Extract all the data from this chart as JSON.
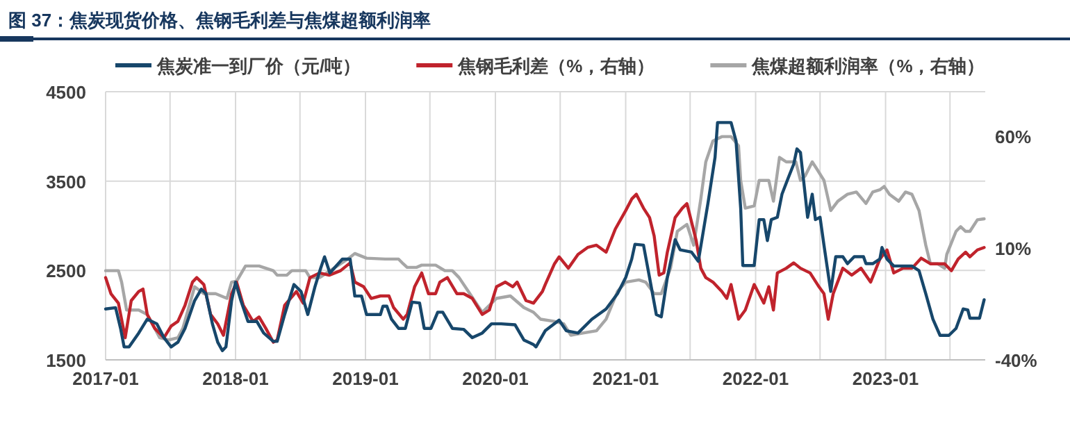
{
  "chart_data": {
    "type": "line",
    "title": "图 37：焦炭现货价格、焦钢毛利差与焦煤超额利润率",
    "grid": true,
    "legend": "top",
    "xlim": [
      "2017-01-01",
      "2023-10-08"
    ],
    "xticks": [
      {
        "value": "2017-01-01",
        "label": "2017-01"
      },
      {
        "value": "2017-07-01",
        "label": null
      },
      {
        "value": "2018-01-01",
        "label": "2018-01"
      },
      {
        "value": "2018-07-01",
        "label": null
      },
      {
        "value": "2019-01-01",
        "label": "2019-01"
      },
      {
        "value": "2019-07-01",
        "label": null
      },
      {
        "value": "2020-01-01",
        "label": "2020-01"
      },
      {
        "value": "2020-07-01",
        "label": null
      },
      {
        "value": "2021-01-01",
        "label": "2021-01"
      },
      {
        "value": "2021-07-01",
        "label": null
      },
      {
        "value": "2022-01-01",
        "label": "2022-01"
      },
      {
        "value": "2022-07-01",
        "label": null
      },
      {
        "value": "2023-01-01",
        "label": "2023-01"
      },
      {
        "value": "2023-07-01",
        "label": null
      }
    ],
    "ylim": [
      1500,
      4500
    ],
    "yticks": [
      1500,
      2500,
      3500,
      4500
    ],
    "y2lim": [
      -40,
      80
    ],
    "y2ticks": [
      {
        "value": -40,
        "label": "-40%"
      },
      {
        "value": 10,
        "label": "10%"
      },
      {
        "value": 60,
        "label": "60%"
      }
    ],
    "series": [
      {
        "name": "焦炭准一到厂价（元/吨）",
        "color": "#17476b",
        "x": [
          "2017-01-01",
          "2017-01-29",
          "2017-02-12",
          "2017-02-22",
          "2017-03-08",
          "2017-04-04",
          "2017-04-28",
          "2017-05-25",
          "2017-06-14",
          "2017-07-04",
          "2017-07-23",
          "2017-08-12",
          "2017-09-08",
          "2017-09-27",
          "2017-10-10",
          "2017-10-28",
          "2017-11-12",
          "2017-11-25",
          "2017-12-05",
          "2017-12-21",
          "2018-01-01",
          "2018-01-16",
          "2018-02-05",
          "2018-03-02",
          "2018-03-21",
          "2018-04-17",
          "2018-04-28",
          "2018-05-19",
          "2018-06-14",
          "2018-07-04",
          "2018-07-23",
          "2018-08-12",
          "2018-08-28",
          "2018-09-08",
          "2018-09-23",
          "2018-10-28",
          "2018-11-19",
          "2018-12-02",
          "2018-12-21",
          "2019-01-04",
          "2019-02-12",
          "2019-02-19",
          "2019-03-02",
          "2019-03-15",
          "2019-04-04",
          "2019-04-23",
          "2019-05-12",
          "2019-06-02",
          "2019-06-15",
          "2019-07-04",
          "2019-07-23",
          "2019-08-06",
          "2019-09-02",
          "2019-10-04",
          "2019-10-28",
          "2019-11-25",
          "2019-12-21",
          "2020-01-17",
          "2020-02-25",
          "2020-03-21",
          "2020-04-17",
          "2020-04-24",
          "2020-05-20",
          "2020-06-28",
          "2020-07-18",
          "2020-08-20",
          "2020-09-28",
          "2020-11-07",
          "2020-12-09",
          "2021-01-01",
          "2021-01-18",
          "2021-01-27",
          "2021-02-20",
          "2021-03-09",
          "2021-03-28",
          "2021-04-11",
          "2021-04-28",
          "2021-05-20",
          "2021-06-03",
          "2021-07-05",
          "2021-07-24",
          "2021-08-20",
          "2021-09-09",
          "2021-09-16",
          "2021-10-24",
          "2021-11-07",
          "2021-11-20",
          "2021-11-26",
          "2021-12-28",
          "2022-01-11",
          "2022-01-24",
          "2022-02-03",
          "2022-02-14",
          "2022-03-03",
          "2022-03-16",
          "2022-04-05",
          "2022-04-18",
          "2022-04-27",
          "2022-05-07",
          "2022-05-20",
          "2022-05-27",
          "2022-06-09",
          "2022-06-18",
          "2022-07-01",
          "2022-07-12",
          "2022-07-31",
          "2022-08-14",
          "2022-09-03",
          "2022-09-16",
          "2022-10-05",
          "2022-10-31",
          "2022-11-07",
          "2022-11-26",
          "2022-12-16",
          "2022-12-22",
          "2023-01-05",
          "2023-01-24",
          "2023-03-16",
          "2023-04-05",
          "2023-04-24",
          "2023-05-14",
          "2023-06-03",
          "2023-06-28",
          "2023-07-18",
          "2023-08-07",
          "2023-08-20",
          "2023-08-26",
          "2023-09-22",
          "2023-10-05"
        ],
        "values": [
          2069,
          2084,
          1852,
          1645,
          1645,
          1800,
          1955,
          1903,
          1748,
          1645,
          1697,
          1852,
          2162,
          2291,
          2240,
          1903,
          1697,
          1603,
          1645,
          2162,
          2369,
          2162,
          1929,
          1929,
          1800,
          1707,
          1707,
          2007,
          2343,
          2265,
          2007,
          2317,
          2524,
          2653,
          2472,
          2627,
          2627,
          2214,
          2214,
          2007,
          2007,
          2100,
          2100,
          1955,
          1852,
          1852,
          2146,
          2136,
          1852,
          1852,
          2033,
          2033,
          1852,
          1841,
          1748,
          1800,
          1903,
          1903,
          1893,
          1722,
          1671,
          1645,
          1826,
          1945,
          1826,
          1800,
          1955,
          2069,
          2240,
          2421,
          2628,
          2793,
          2783,
          2421,
          2007,
          1981,
          2421,
          2845,
          2731,
          2705,
          2603,
          3250,
          3767,
          4155,
          4155,
          3948,
          3198,
          2555,
          2555,
          3069,
          3069,
          2835,
          3069,
          3095,
          3353,
          3560,
          3690,
          3860,
          3819,
          3353,
          3095,
          3353,
          3069,
          3095,
          2783,
          2266,
          2654,
          2654,
          2576,
          2654,
          2654,
          2576,
          2576,
          2628,
          2757,
          2628,
          2550,
          2550,
          2498,
          2240,
          1955,
          1774,
          1774,
          1852,
          2069,
          2059,
          1966,
          1966,
          2173
        ]
      },
      {
        "name": "焦钢毛利差（%，右轴）",
        "color": "#c0232c",
        "axis": "y2",
        "x": [
          "2017-01-01",
          "2017-01-16",
          "2017-02-06",
          "2017-02-25",
          "2017-03-14",
          "2017-04-04",
          "2017-04-16",
          "2017-04-28",
          "2017-05-19",
          "2017-06-14",
          "2017-07-04",
          "2017-07-23",
          "2017-08-12",
          "2017-09-02",
          "2017-09-14",
          "2017-10-04",
          "2017-10-23",
          "2017-11-12",
          "2017-11-28",
          "2017-12-21",
          "2018-01-04",
          "2018-01-23",
          "2018-02-19",
          "2018-03-08",
          "2018-03-27",
          "2018-04-17",
          "2018-04-28",
          "2018-05-19",
          "2018-06-21",
          "2018-07-10",
          "2018-07-29",
          "2018-08-25",
          "2018-09-21",
          "2018-10-23",
          "2018-11-19",
          "2018-12-02",
          "2018-12-27",
          "2019-01-17",
          "2019-02-12",
          "2019-03-08",
          "2019-03-21",
          "2019-04-17",
          "2019-04-28",
          "2019-05-19",
          "2019-06-08",
          "2019-06-27",
          "2019-07-17",
          "2019-07-29",
          "2019-08-19",
          "2019-09-15",
          "2019-10-04",
          "2019-10-28",
          "2019-11-25",
          "2019-12-15",
          "2020-01-04",
          "2020-01-29",
          "2020-02-19",
          "2020-03-02",
          "2020-03-27",
          "2020-04-17",
          "2020-05-12",
          "2020-05-20",
          "2020-06-15",
          "2020-06-28",
          "2020-07-24",
          "2020-08-20",
          "2020-09-16",
          "2020-10-11",
          "2020-11-07",
          "2020-12-03",
          "2021-01-01",
          "2021-01-18",
          "2021-01-31",
          "2021-02-20",
          "2021-03-09",
          "2021-03-22",
          "2021-04-05",
          "2021-04-18",
          "2021-04-28",
          "2021-05-20",
          "2021-06-09",
          "2021-06-22",
          "2021-07-05",
          "2021-07-18",
          "2021-07-31",
          "2021-08-14",
          "2021-09-03",
          "2021-09-28",
          "2021-10-12",
          "2021-10-24",
          "2021-11-14",
          "2021-12-03",
          "2021-12-28",
          "2022-01-24",
          "2022-02-07",
          "2022-02-20",
          "2022-03-03",
          "2022-03-28",
          "2022-04-18",
          "2022-05-07",
          "2022-06-03",
          "2022-06-28",
          "2022-07-12",
          "2022-07-24",
          "2022-08-07",
          "2022-09-03",
          "2022-09-28",
          "2022-10-24",
          "2022-11-20",
          "2022-12-16",
          "2023-01-05",
          "2023-01-24",
          "2023-02-19",
          "2023-03-16",
          "2023-04-11",
          "2023-05-07",
          "2023-06-16",
          "2023-07-05",
          "2023-07-24",
          "2023-08-14",
          "2023-08-26",
          "2023-09-16",
          "2023-10-05"
        ],
        "values": [
          -3.2,
          -10.4,
          -14.6,
          -30.1,
          -13.5,
          -9.4,
          -8.3,
          -19.7,
          -25.9,
          -30.1,
          -24.9,
          -22.8,
          -15.6,
          -5.2,
          -3.2,
          -6.3,
          -19.7,
          -23.9,
          -29.0,
          -10.4,
          -5.2,
          -15.6,
          -22.8,
          -20.8,
          -25.9,
          -32.1,
          -31.1,
          -15.6,
          -9.4,
          -14.6,
          -3.2,
          -1.1,
          -2.1,
          -0.1,
          3.4,
          -5.2,
          -7.3,
          -12.5,
          -11.4,
          -11.4,
          -16.6,
          -21.8,
          -19.7,
          -7.3,
          -1.1,
          -10.4,
          -10.4,
          -5.2,
          -3.2,
          -10.4,
          -10.4,
          -12.5,
          -19.7,
          -17.7,
          -7.3,
          -5.2,
          -7.3,
          -5.2,
          -13.5,
          -14.6,
          -9.4,
          -6.3,
          3.0,
          6.1,
          1.0,
          7.2,
          10.3,
          11.3,
          8.2,
          18.6,
          26.8,
          32.0,
          34.1,
          27.9,
          23.7,
          15.4,
          -2.1,
          -1.1,
          8.2,
          23.7,
          27.9,
          29.9,
          21.7,
          13.4,
          1.0,
          -3.2,
          -5.2,
          -9.4,
          -12.5,
          -6.3,
          -21.8,
          -17.7,
          -6.3,
          -14.6,
          -7.3,
          -17.7,
          -1.1,
          1.0,
          3.4,
          1.0,
          -1.1,
          -7.3,
          -10.4,
          -21.8,
          -10.4,
          1.0,
          -2.1,
          1.0,
          -5.2,
          5.1,
          9.2,
          -1.1,
          1.0,
          1.0,
          5.5,
          3.0,
          3.0,
          -0.1,
          5.1,
          8.2,
          6.1,
          9.2,
          10.3
        ]
      },
      {
        "name": "焦煤超额利润率（%，右轴）",
        "color": "#a6a6a6",
        "axis": "y2",
        "x": [
          "2017-01-01",
          "2017-02-06",
          "2017-02-15",
          "2017-03-01",
          "2017-04-04",
          "2017-04-28",
          "2017-05-19",
          "2017-06-02",
          "2017-06-27",
          "2017-07-23",
          "2017-08-06",
          "2017-09-08",
          "2017-10-04",
          "2017-11-06",
          "2017-12-08",
          "2017-12-21",
          "2018-01-04",
          "2018-01-29",
          "2018-03-08",
          "2018-04-17",
          "2018-04-28",
          "2018-05-25",
          "2018-06-08",
          "2018-07-17",
          "2018-07-29",
          "2018-08-25",
          "2018-10-04",
          "2018-11-12",
          "2018-12-02",
          "2019-01-04",
          "2019-02-25",
          "2019-04-04",
          "2019-04-17",
          "2019-04-28",
          "2019-05-25",
          "2019-06-08",
          "2019-07-17",
          "2019-08-12",
          "2019-09-02",
          "2019-09-21",
          "2019-10-17",
          "2019-11-25",
          "2020-01-04",
          "2020-02-12",
          "2020-03-21",
          "2020-04-17",
          "2020-05-07",
          "2020-06-15",
          "2020-07-11",
          "2020-07-31",
          "2020-09-03",
          "2020-10-11",
          "2020-11-07",
          "2020-12-09",
          "2021-01-01",
          "2021-02-07",
          "2021-02-26",
          "2021-03-22",
          "2021-04-11",
          "2021-05-07",
          "2021-05-26",
          "2021-06-22",
          "2021-07-11",
          "2021-07-31",
          "2021-08-14",
          "2021-09-03",
          "2021-09-28",
          "2021-10-24",
          "2021-11-14",
          "2021-11-20",
          "2021-12-03",
          "2021-12-28",
          "2022-01-11",
          "2022-02-07",
          "2022-02-20",
          "2022-03-09",
          "2022-03-28",
          "2022-04-24",
          "2022-05-07",
          "2022-05-20",
          "2022-06-09",
          "2022-06-22",
          "2022-07-12",
          "2022-07-31",
          "2022-08-20",
          "2022-09-16",
          "2022-10-11",
          "2022-11-07",
          "2022-11-26",
          "2022-12-16",
          "2022-12-28",
          "2023-01-12",
          "2023-02-07",
          "2023-02-26",
          "2023-03-16",
          "2023-04-05",
          "2023-04-24",
          "2023-05-07",
          "2023-05-27",
          "2023-06-16",
          "2023-06-22",
          "2023-07-18",
          "2023-07-31",
          "2023-08-14",
          "2023-08-26",
          "2023-09-16",
          "2023-10-05"
        ],
        "values": [
          -0.1,
          -0.1,
          -5.2,
          -17.7,
          -17.7,
          -19.7,
          -25.9,
          -30.1,
          -31.1,
          -30.1,
          -25.9,
          -7.3,
          -10.4,
          -10.4,
          -12.5,
          -5.2,
          -4.8,
          2.0,
          2.0,
          -0.1,
          -2.1,
          -2.1,
          -0.1,
          -0.1,
          -3.2,
          -3.2,
          1.0,
          5.1,
          7.6,
          5.5,
          5.1,
          5.1,
          3.0,
          1.4,
          1.4,
          2.4,
          2.4,
          -0.1,
          -0.1,
          -3.2,
          -9.4,
          -18.7,
          -12.5,
          -11.4,
          -16.6,
          -18.7,
          -21.8,
          -22.8,
          -23.9,
          -29.0,
          -28.0,
          -27.0,
          -21.8,
          -9.4,
          -5.2,
          -4.2,
          -5.2,
          -10.4,
          -10.4,
          1.0,
          17.5,
          20.6,
          11.3,
          32.0,
          48.6,
          57.9,
          59.9,
          59.9,
          55.8,
          40.3,
          27.9,
          28.9,
          40.3,
          40.3,
          31.0,
          50.6,
          48.6,
          48.6,
          40.3,
          42.3,
          48.6,
          45.4,
          40.3,
          26.8,
          31.0,
          34.1,
          35.1,
          30.0,
          35.1,
          36.1,
          37.6,
          34.1,
          31.0,
          35.1,
          34.1,
          26.8,
          11.3,
          3.0,
          3.0,
          1.0,
          7.2,
          17.5,
          19.6,
          17.5,
          17.5,
          22.7,
          23.1
        ]
      }
    ]
  }
}
